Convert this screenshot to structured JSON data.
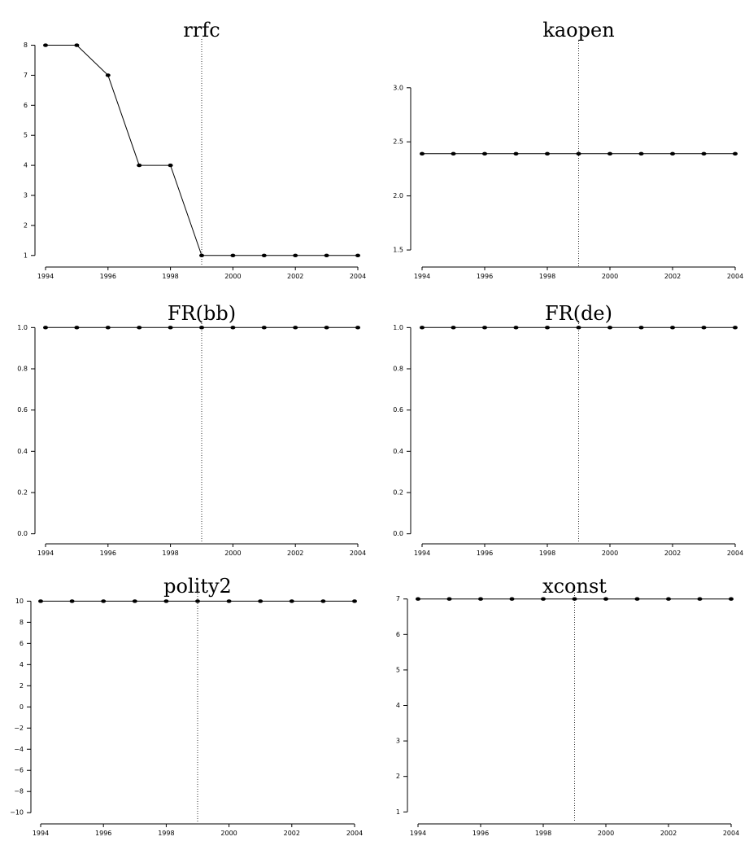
{
  "chart_data": [
    {
      "type": "line",
      "title": "rrfc",
      "xlabel": "",
      "ylabel": "",
      "x": [
        1994,
        1995,
        1996,
        1997,
        1998,
        1999,
        2000,
        2001,
        2002,
        2003,
        2004
      ],
      "series": [
        {
          "values": [
            8,
            8,
            7,
            4,
            4,
            1,
            1,
            1,
            1,
            1,
            1
          ]
        }
      ],
      "xticks": [
        1994,
        1996,
        1998,
        2000,
        2002,
        2004
      ],
      "xtick_labels": [
        "1994",
        "1996",
        "1998",
        "2000",
        "2002",
        "2004"
      ],
      "yticks": [
        1,
        2,
        3,
        4,
        5,
        6,
        7,
        8
      ],
      "ytick_labels": [
        "1",
        "2",
        "3",
        "4",
        "5",
        "6",
        "7",
        "8"
      ],
      "xlim": [
        1994,
        2004
      ],
      "ylim": [
        0.75,
        8.15
      ],
      "vline": 1999,
      "grid": false
    },
    {
      "type": "line",
      "title": "kaopen",
      "xlabel": "",
      "ylabel": "",
      "x": [
        1994,
        1995,
        1996,
        1997,
        1998,
        1999,
        2000,
        2001,
        2002,
        2003,
        2004
      ],
      "series": [
        {
          "values": [
            2.39,
            2.39,
            2.39,
            2.39,
            2.39,
            2.39,
            2.39,
            2.39,
            2.39,
            2.39,
            2.39
          ]
        }
      ],
      "xticks": [
        1994,
        1996,
        1998,
        2000,
        2002,
        2004
      ],
      "xtick_labels": [
        "1994",
        "1996",
        "1998",
        "2000",
        "2002",
        "2004"
      ],
      "yticks": [
        1.5,
        2.0,
        2.5,
        3.0
      ],
      "ytick_labels": [
        "1.5",
        "2.0",
        "2.5",
        "3.0"
      ],
      "xlim": [
        1994,
        2004
      ],
      "ylim": [
        1.38,
        3.42
      ],
      "vline": 1999,
      "grid": false
    },
    {
      "type": "line",
      "title": "FR(bb)",
      "xlabel": "",
      "ylabel": "",
      "x": [
        1994,
        1995,
        1996,
        1997,
        1998,
        1999,
        2000,
        2001,
        2002,
        2003,
        2004
      ],
      "series": [
        {
          "values": [
            1,
            1,
            1,
            1,
            1,
            1,
            1,
            1,
            1,
            1,
            1
          ]
        }
      ],
      "xticks": [
        1994,
        1996,
        1998,
        2000,
        2002,
        2004
      ],
      "xtick_labels": [
        "1994",
        "1996",
        "1998",
        "2000",
        "2002",
        "2004"
      ],
      "yticks": [
        0.0,
        0.2,
        0.4,
        0.6,
        0.8,
        1.0
      ],
      "ytick_labels": [
        "0.0",
        "0.2",
        "0.4",
        "0.6",
        "0.8",
        "1.0"
      ],
      "xlim": [
        1994,
        2004
      ],
      "ylim": [
        -0.025,
        1.025
      ],
      "vline": 1999,
      "grid": false
    },
    {
      "type": "line",
      "title": "FR(de)",
      "xlabel": "",
      "ylabel": "",
      "x": [
        1994,
        1995,
        1996,
        1997,
        1998,
        1999,
        2000,
        2001,
        2002,
        2003,
        2004
      ],
      "series": [
        {
          "values": [
            1,
            1,
            1,
            1,
            1,
            1,
            1,
            1,
            1,
            1,
            1
          ]
        }
      ],
      "xticks": [
        1994,
        1996,
        1998,
        2000,
        2002,
        2004
      ],
      "xtick_labels": [
        "1994",
        "1996",
        "1998",
        "2000",
        "2002",
        "2004"
      ],
      "yticks": [
        0.0,
        0.2,
        0.4,
        0.6,
        0.8,
        1.0
      ],
      "ytick_labels": [
        "0.0",
        "0.2",
        "0.4",
        "0.6",
        "0.8",
        "1.0"
      ],
      "xlim": [
        1994,
        2004
      ],
      "ylim": [
        -0.025,
        1.025
      ],
      "vline": 1999,
      "grid": false
    },
    {
      "type": "line",
      "title": "polity2",
      "xlabel": "",
      "ylabel": "",
      "x": [
        1994,
        1995,
        1996,
        1997,
        1998,
        1999,
        2000,
        2001,
        2002,
        2003,
        2004
      ],
      "series": [
        {
          "values": [
            10,
            10,
            10,
            10,
            10,
            10,
            10,
            10,
            10,
            10,
            10
          ]
        }
      ],
      "xticks": [
        1994,
        1996,
        1998,
        2000,
        2002,
        2004
      ],
      "xtick_labels": [
        "1994",
        "1996",
        "1998",
        "2000",
        "2002",
        "2004"
      ],
      "yticks": [
        -10,
        -8,
        -6,
        -4,
        -2,
        0,
        2,
        4,
        6,
        8,
        10
      ],
      "ytick_labels": [
        "−10",
        "−8",
        "−6",
        "−4",
        "−2",
        "0",
        "2",
        "4",
        "6",
        "8",
        "10"
      ],
      "xlim": [
        1994,
        2004
      ],
      "ylim": [
        -10.6,
        10.8
      ],
      "vline": 1999,
      "grid": false
    },
    {
      "type": "line",
      "title": "xconst",
      "xlabel": "",
      "ylabel": "",
      "x": [
        1994,
        1995,
        1996,
        1997,
        1998,
        1999,
        2000,
        2001,
        2002,
        2003,
        2004
      ],
      "series": [
        {
          "values": [
            7,
            7,
            7,
            7,
            7,
            7,
            7,
            7,
            7,
            7,
            7
          ]
        }
      ],
      "xticks": [
        1994,
        1996,
        1998,
        2000,
        2002,
        2004
      ],
      "xtick_labels": [
        "1994",
        "1996",
        "1998",
        "2000",
        "2002",
        "2004"
      ],
      "yticks": [
        1,
        2,
        3,
        4,
        5,
        6,
        7
      ],
      "ytick_labels": [
        "1",
        "2",
        "3",
        "4",
        "5",
        "6",
        "7"
      ],
      "xlim": [
        1994,
        2004
      ],
      "ylim": [
        0.8,
        7.2
      ],
      "vline": 1999,
      "grid": false
    }
  ]
}
